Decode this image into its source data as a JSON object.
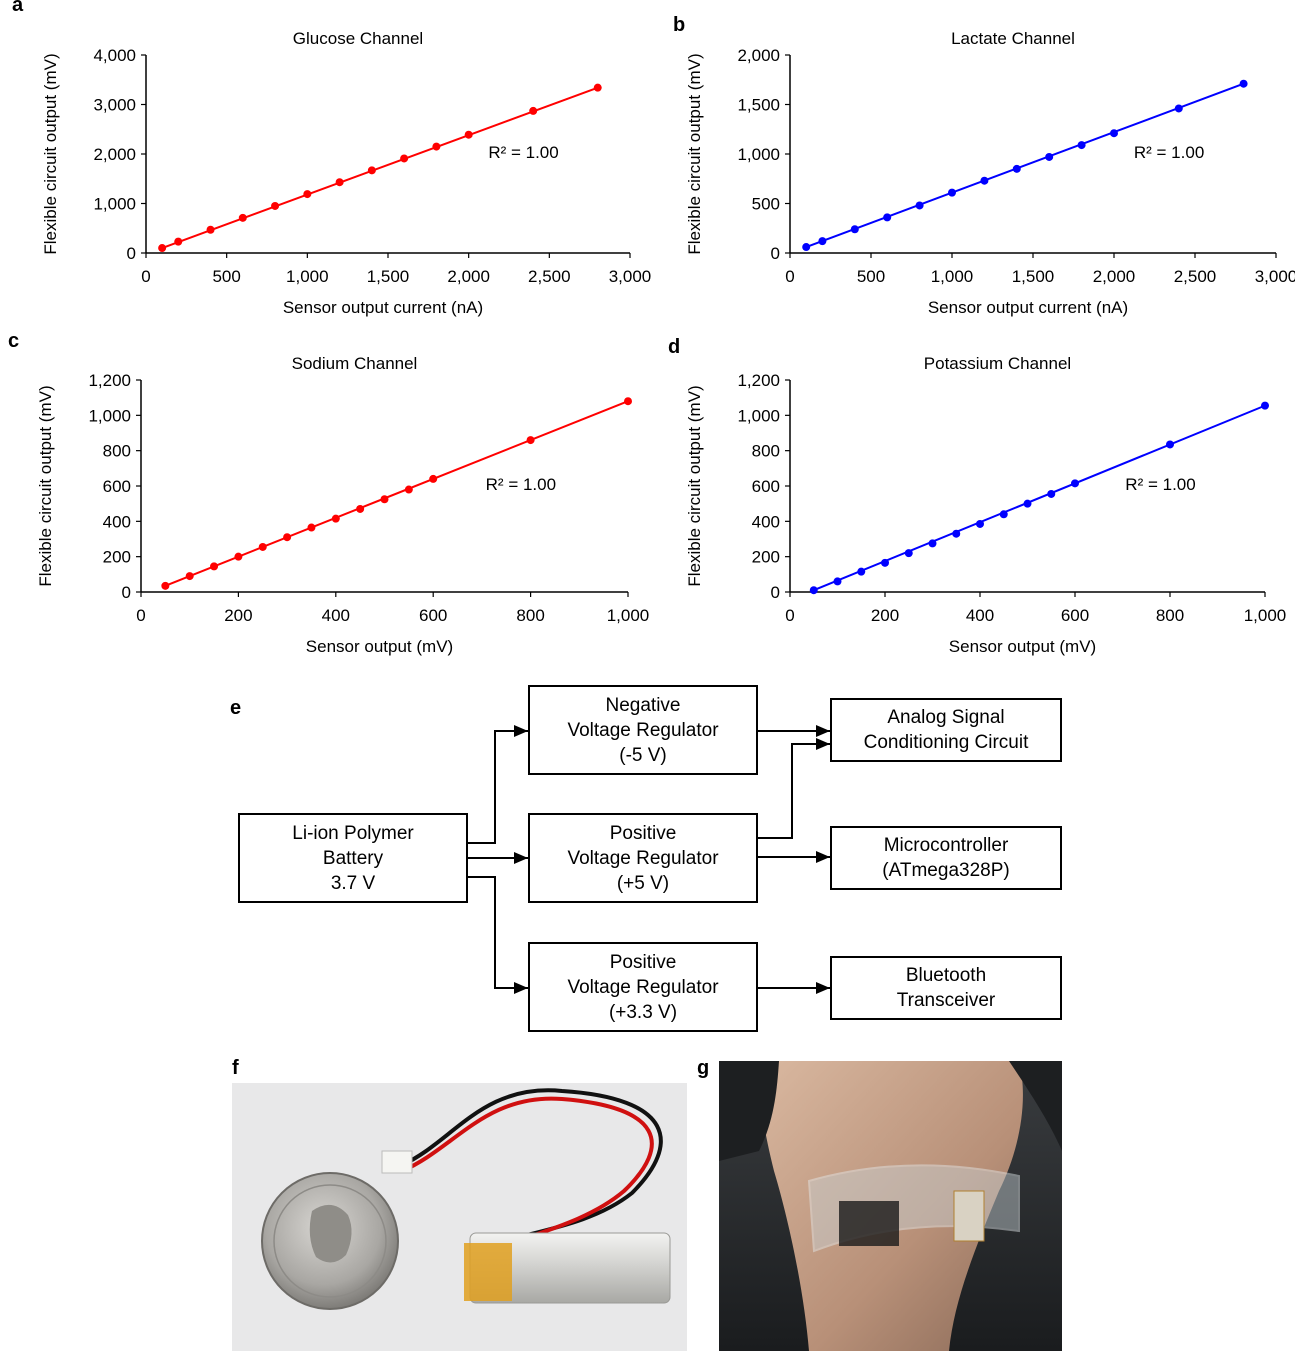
{
  "panel_labels": {
    "a": "a",
    "b": "b",
    "c": "c",
    "d": "d",
    "e": "e",
    "f": "f",
    "g": "g"
  },
  "chart_data": [
    {
      "id": "a",
      "type": "scatter",
      "title": "Glucose Channel",
      "xlabel": "Sensor output current (nA)",
      "ylabel": "Flexible circuit output (mV)",
      "xlim": [
        0,
        3000
      ],
      "ylim": [
        0,
        4000
      ],
      "xticks": [
        0,
        500,
        1000,
        1500,
        2000,
        2500,
        3000
      ],
      "xtick_labels": [
        "0",
        "500",
        "1,000",
        "1,500",
        "2,000",
        "2,500",
        "3,000"
      ],
      "yticks": [
        0,
        1000,
        2000,
        3000,
        4000
      ],
      "ytick_labels": [
        "0",
        "1,000",
        "2,000",
        "3,000",
        "4,000"
      ],
      "color": "#ff0000",
      "annotation": "R² = 1.00",
      "grid": false,
      "x": [
        100,
        200,
        400,
        600,
        800,
        1000,
        1200,
        1400,
        1600,
        1800,
        2000,
        2400,
        2800
      ],
      "y": [
        100,
        230,
        470,
        710,
        950,
        1190,
        1430,
        1670,
        1910,
        2150,
        2390,
        2870,
        3340
      ]
    },
    {
      "id": "b",
      "type": "scatter",
      "title": "Lactate Channel",
      "xlabel": "Sensor output current (nA)",
      "ylabel": "Flexible circuit output (mV)",
      "xlim": [
        0,
        3000
      ],
      "ylim": [
        0,
        2000
      ],
      "xticks": [
        0,
        500,
        1000,
        1500,
        2000,
        2500,
        3000
      ],
      "xtick_labels": [
        "0",
        "500",
        "1,000",
        "1,500",
        "2,000",
        "2,500",
        "3,000"
      ],
      "yticks": [
        0,
        500,
        1000,
        1500,
        2000
      ],
      "ytick_labels": [
        "0",
        "500",
        "1,000",
        "1,500",
        "2,000"
      ],
      "color": "#0000ff",
      "annotation": "R² = 1.00",
      "grid": false,
      "x": [
        100,
        200,
        400,
        600,
        800,
        1000,
        1200,
        1400,
        1600,
        1800,
        2000,
        2400,
        2800
      ],
      "y": [
        60,
        120,
        240,
        360,
        480,
        610,
        730,
        850,
        970,
        1090,
        1210,
        1460,
        1710
      ]
    },
    {
      "id": "c",
      "type": "scatter",
      "title": "Sodium Channel",
      "xlabel": "Sensor output (mV)",
      "ylabel": "Flexible circuit output (mV)",
      "xlim": [
        0,
        1000
      ],
      "ylim": [
        0,
        1200
      ],
      "xticks": [
        0,
        200,
        400,
        600,
        800,
        1000
      ],
      "xtick_labels": [
        "0",
        "200",
        "400",
        "600",
        "800",
        "1,000"
      ],
      "yticks": [
        0,
        200,
        400,
        600,
        800,
        1000,
        1200
      ],
      "ytick_labels": [
        "0",
        "200",
        "400",
        "600",
        "800",
        "1,000",
        "1,200"
      ],
      "color": "#ff0000",
      "annotation": "R² = 1.00",
      "grid": false,
      "x": [
        50,
        100,
        150,
        200,
        250,
        300,
        350,
        400,
        450,
        500,
        550,
        600,
        800,
        1000
      ],
      "y": [
        35,
        90,
        145,
        200,
        255,
        310,
        365,
        415,
        470,
        525,
        580,
        640,
        860,
        1080
      ]
    },
    {
      "id": "d",
      "type": "scatter",
      "title": "Potassium Channel",
      "xlabel": "Sensor output (mV)",
      "ylabel": "Flexible circuit output (mV)",
      "xlim": [
        0,
        1000
      ],
      "ylim": [
        0,
        1200
      ],
      "xticks": [
        0,
        200,
        400,
        600,
        800,
        1000
      ],
      "xtick_labels": [
        "0",
        "200",
        "400",
        "600",
        "800",
        "1,000"
      ],
      "yticks": [
        0,
        200,
        400,
        600,
        800,
        1000,
        1200
      ],
      "ytick_labels": [
        "0",
        "200",
        "400",
        "600",
        "800",
        "1,000",
        "1,200"
      ],
      "color": "#0000ff",
      "annotation": "R² = 1.00",
      "grid": false,
      "x": [
        50,
        100,
        150,
        200,
        250,
        300,
        350,
        400,
        450,
        500,
        550,
        600,
        800,
        1000
      ],
      "y": [
        10,
        60,
        115,
        165,
        220,
        275,
        330,
        385,
        440,
        500,
        555,
        615,
        835,
        1055
      ]
    }
  ],
  "diagram": {
    "battery": "Li-ion Polymer\nBattery\n3.7 V",
    "neg_reg": "Negative\nVoltage Regulator\n(-5 V)",
    "pos5_reg": "Positive\nVoltage Regulator\n(+5 V)",
    "pos33_reg": "Positive\nVoltage Regulator\n(+3.3 V)",
    "analog": "Analog Signal\nConditioning Circuit",
    "mcu": "Microcontroller\n(ATmega328P)",
    "bt": "Bluetooth\nTransceiver"
  },
  "photos": {
    "f_icon": "battery-coin-photo",
    "g_icon": "wrist-band-photo"
  }
}
